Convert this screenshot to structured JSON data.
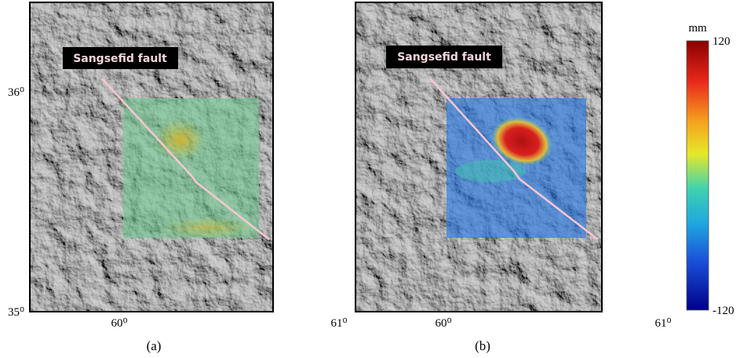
{
  "panels": [
    {
      "label": "(a)",
      "fault_label": "Sangsefid fault"
    },
    {
      "label": "(b)",
      "fault_label": "Sangsefid fault"
    }
  ],
  "axes": {
    "lat_labels": [
      "36⁰",
      "35⁰"
    ],
    "lon_labels": [
      "60⁰",
      "61⁰"
    ]
  },
  "colorbar": {
    "unit": "mm",
    "max": 120,
    "min": -120
  }
}
